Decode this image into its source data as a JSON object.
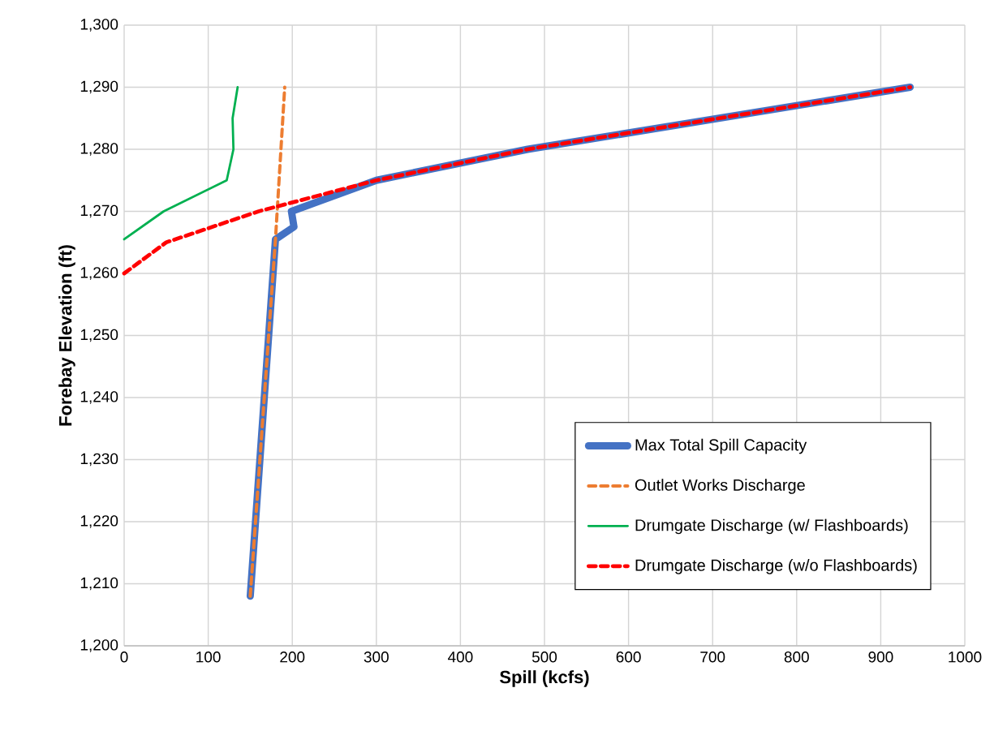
{
  "chart_data": {
    "type": "line",
    "xlabel": "Spill (kcfs)",
    "ylabel": "Forebay Elevation (ft)",
    "xlim": [
      0,
      1000
    ],
    "ylim": [
      1200,
      1300
    ],
    "xticks": [
      0,
      100,
      200,
      300,
      400,
      500,
      600,
      700,
      800,
      900,
      1000
    ],
    "yticks": [
      {
        "value": 1200,
        "label": "1,200"
      },
      {
        "value": 1210,
        "label": "1,210"
      },
      {
        "value": 1220,
        "label": "1,220"
      },
      {
        "value": 1230,
        "label": "1,230"
      },
      {
        "value": 1240,
        "label": "1,240"
      },
      {
        "value": 1250,
        "label": "1,250"
      },
      {
        "value": 1260,
        "label": "1,260"
      },
      {
        "value": 1270,
        "label": "1,270"
      },
      {
        "value": 1280,
        "label": "1,280"
      },
      {
        "value": 1290,
        "label": "1,290"
      },
      {
        "value": 1300,
        "label": "1,300"
      }
    ],
    "grid": true,
    "legend": "bottom right",
    "series": [
      {
        "name": "Max Total Spill Capacity",
        "color": "#4472c4",
        "line_style": "solid",
        "x": [
          150,
          180,
          202,
          199,
          300,
          480,
          935
        ],
        "values": [
          1208,
          1265.5,
          1267.5,
          1270,
          1275,
          1280,
          1290
        ]
      },
      {
        "name": "Outlet Works Discharge",
        "color": "#ed7d31",
        "line_style": "dashed",
        "x": [
          150,
          180,
          191
        ],
        "values": [
          1208,
          1265.5,
          1290
        ]
      },
      {
        "name": "Drumgate Discharge (w/ Flashboards)",
        "color": "#00b050",
        "line_style": "solid",
        "x": [
          0,
          47,
          122,
          130,
          129,
          135
        ],
        "values": [
          1265.5,
          1270,
          1275,
          1280,
          1285,
          1290
        ]
      },
      {
        "name": "Drumgate Discharge (w/o Flashboards)",
        "color": "#ff0000",
        "line_style": "dashed",
        "x": [
          0,
          50,
          160,
          300,
          480,
          935
        ],
        "values": [
          1260,
          1265,
          1270,
          1275,
          1280,
          1290
        ]
      }
    ]
  }
}
